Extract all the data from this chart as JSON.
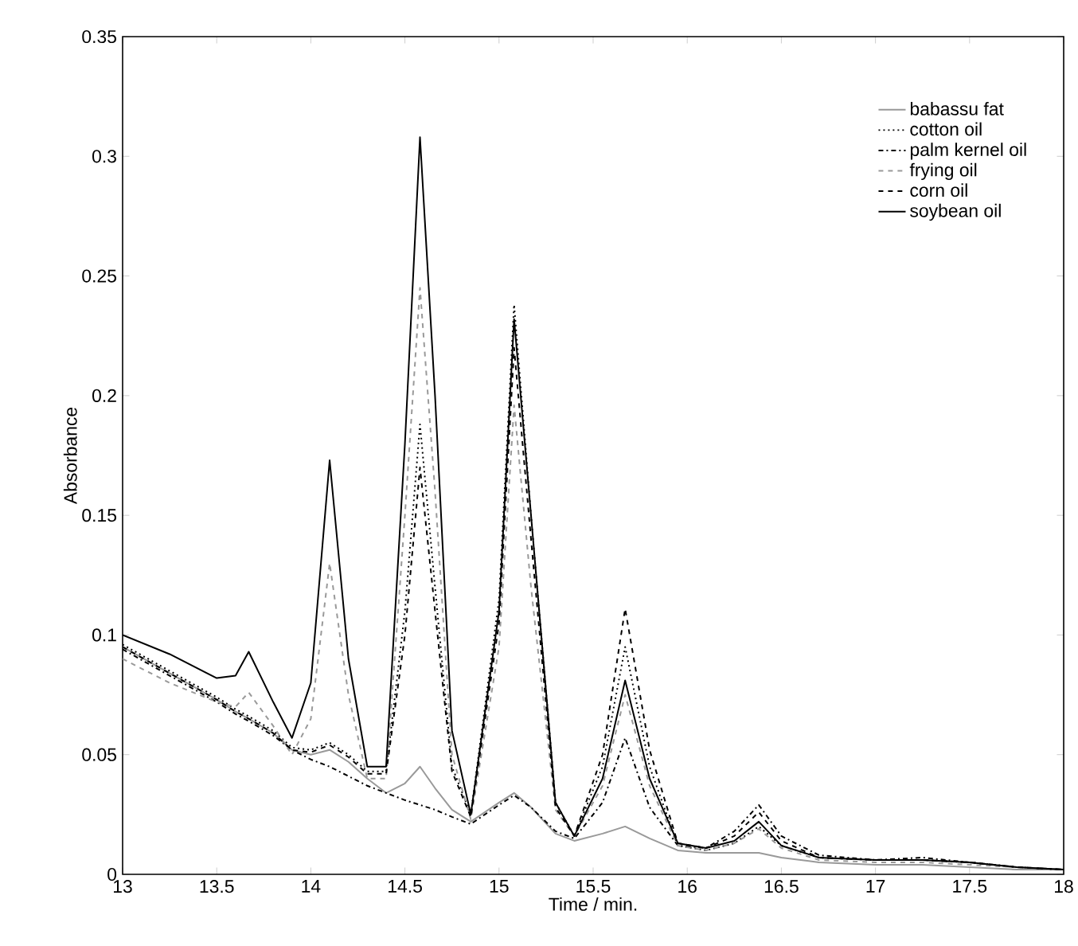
{
  "chart_data": {
    "type": "line",
    "xlabel": "Time / min.",
    "ylabel": "Absorbance",
    "x": [
      13,
      13.25,
      13.5,
      13.6,
      13.67,
      13.8,
      13.9,
      14.0,
      14.1,
      14.2,
      14.3,
      14.4,
      14.5,
      14.58,
      14.66,
      14.75,
      14.85,
      15.0,
      15.08,
      15.17,
      15.3,
      15.4,
      15.55,
      15.67,
      15.8,
      15.95,
      16.1,
      16.25,
      16.38,
      16.5,
      16.7,
      17,
      17.25,
      17.5,
      17.75,
      18
    ],
    "series": [
      {
        "name": "babassu fat",
        "color": "#999999",
        "line_style": "solid",
        "values": [
          0.095,
          0.084,
          0.073,
          0.068,
          0.065,
          0.059,
          0.052,
          0.05,
          0.052,
          0.047,
          0.04,
          0.034,
          0.038,
          0.045,
          0.036,
          0.027,
          0.022,
          0.03,
          0.034,
          0.028,
          0.017,
          0.014,
          0.017,
          0.02,
          0.015,
          0.01,
          0.009,
          0.009,
          0.009,
          0.007,
          0.005,
          0.004,
          0.004,
          0.003,
          0.002,
          0.002
        ]
      },
      {
        "name": "cotton oil",
        "color": "#000000",
        "line_style": "dotted",
        "values": [
          0.096,
          0.085,
          0.074,
          0.069,
          0.066,
          0.06,
          0.053,
          0.052,
          0.055,
          0.05,
          0.043,
          0.043,
          0.11,
          0.188,
          0.12,
          0.045,
          0.025,
          0.115,
          0.238,
          0.15,
          0.03,
          0.016,
          0.045,
          0.095,
          0.045,
          0.012,
          0.01,
          0.013,
          0.02,
          0.012,
          0.007,
          0.006,
          0.006,
          0.005,
          0.003,
          0.002
        ]
      },
      {
        "name": "palm kernel oil",
        "color": "#000000",
        "line_style": "dashdot",
        "values": [
          0.094,
          0.083,
          0.072,
          0.067,
          0.064,
          0.058,
          0.052,
          0.048,
          0.045,
          0.041,
          0.037,
          0.034,
          0.031,
          0.029,
          0.027,
          0.024,
          0.021,
          0.029,
          0.033,
          0.028,
          0.018,
          0.015,
          0.03,
          0.057,
          0.028,
          0.012,
          0.011,
          0.018,
          0.029,
          0.016,
          0.008,
          0.006,
          0.007,
          0.005,
          0.003,
          0.002
        ]
      },
      {
        "name": "frying oil",
        "color": "#999999",
        "line_style": "dashed",
        "values": [
          0.09,
          0.08,
          0.072,
          0.07,
          0.076,
          0.062,
          0.05,
          0.065,
          0.13,
          0.075,
          0.04,
          0.04,
          0.15,
          0.245,
          0.16,
          0.05,
          0.023,
          0.095,
          0.196,
          0.12,
          0.027,
          0.016,
          0.037,
          0.075,
          0.037,
          0.012,
          0.01,
          0.013,
          0.019,
          0.011,
          0.006,
          0.005,
          0.005,
          0.004,
          0.003,
          0.002
        ]
      },
      {
        "name": "corn oil",
        "color": "#000000",
        "line_style": "dashed",
        "values": [
          0.095,
          0.084,
          0.073,
          0.068,
          0.065,
          0.059,
          0.052,
          0.051,
          0.054,
          0.049,
          0.042,
          0.042,
          0.1,
          0.17,
          0.11,
          0.043,
          0.024,
          0.105,
          0.22,
          0.14,
          0.028,
          0.016,
          0.05,
          0.111,
          0.052,
          0.013,
          0.011,
          0.016,
          0.026,
          0.014,
          0.007,
          0.006,
          0.006,
          0.005,
          0.003,
          0.002
        ]
      },
      {
        "name": "soybean oil",
        "color": "#000000",
        "line_style": "solid",
        "values": [
          0.1,
          0.092,
          0.082,
          0.083,
          0.093,
          0.072,
          0.057,
          0.08,
          0.173,
          0.09,
          0.045,
          0.045,
          0.18,
          0.308,
          0.2,
          0.06,
          0.025,
          0.11,
          0.232,
          0.15,
          0.03,
          0.016,
          0.04,
          0.081,
          0.04,
          0.013,
          0.011,
          0.014,
          0.022,
          0.012,
          0.007,
          0.006,
          0.006,
          0.005,
          0.003,
          0.002
        ]
      }
    ],
    "xlim": [
      13,
      18
    ],
    "ylim": [
      0,
      0.35
    ],
    "xticks": [
      13,
      13.5,
      14,
      14.5,
      15,
      15.5,
      16,
      16.5,
      17,
      17.5,
      18
    ],
    "yticks": [
      0,
      0.05,
      0.1,
      0.15,
      0.2,
      0.25,
      0.3,
      0.35
    ],
    "grid": false,
    "legend": "top right",
    "marker": "none"
  }
}
